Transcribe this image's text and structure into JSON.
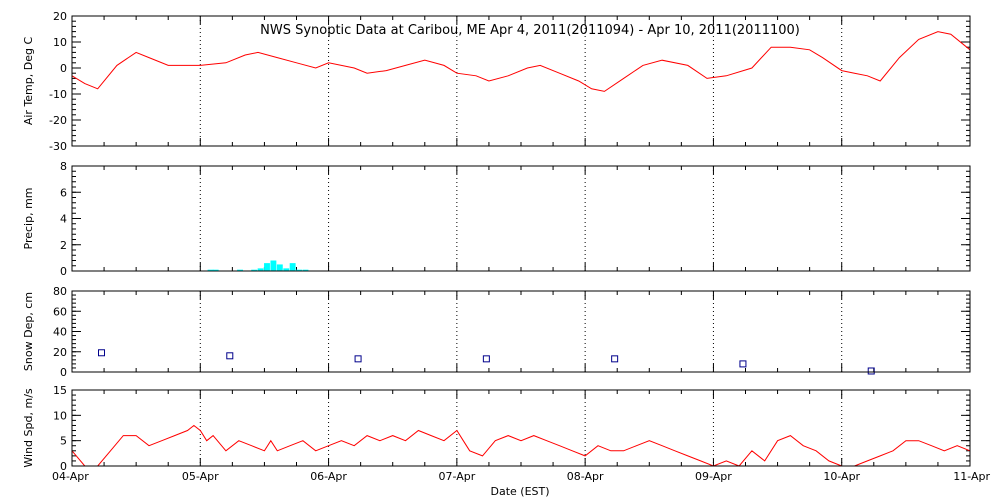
{
  "title": "NWS Synoptic Data at Caribou, ME   Apr  4, 2011(2011094) - Apr 10, 2011(2011100)",
  "xlabel": "Date (EST)",
  "x_ticks": [
    "04-Apr",
    "05-Apr",
    "06-Apr",
    "07-Apr",
    "08-Apr",
    "09-Apr",
    "10-Apr",
    "11-Apr"
  ],
  "colors": {
    "temp": "#ff0000",
    "precip": "#00ffff",
    "snow": "#00008b",
    "wind": "#ff0000"
  },
  "chart_data": [
    {
      "type": "line",
      "name": "air_temp",
      "ylabel": "Air Temp, Deg C",
      "ylim": [
        -30,
        20
      ],
      "yticks": [
        20,
        10,
        0,
        -10,
        -20,
        -30
      ],
      "xlim": [
        0,
        7
      ],
      "grid": "vertical dotted at day boundaries",
      "x_days": [
        0.0,
        0.1,
        0.2,
        0.35,
        0.5,
        0.6,
        0.75,
        0.85,
        1.0,
        1.2,
        1.35,
        1.45,
        1.6,
        1.75,
        1.9,
        2.0,
        2.2,
        2.3,
        2.45,
        2.6,
        2.75,
        2.9,
        3.0,
        3.15,
        3.25,
        3.4,
        3.55,
        3.65,
        3.8,
        3.95,
        4.05,
        4.15,
        4.3,
        4.45,
        4.6,
        4.8,
        4.95,
        5.1,
        5.3,
        5.45,
        5.6,
        5.75,
        5.85,
        6.0,
        6.1,
        6.2,
        6.3,
        6.45,
        6.6,
        6.75,
        6.85,
        7.0
      ],
      "y": [
        -3,
        -6,
        -8,
        1,
        6,
        4,
        1,
        1,
        1,
        2,
        5,
        6,
        4,
        2,
        0,
        2,
        0,
        -2,
        -1,
        1,
        3,
        1,
        -2,
        -3,
        -5,
        -3,
        0,
        1,
        -2,
        -5,
        -8,
        -9,
        -4,
        1,
        3,
        1,
        -4,
        -3,
        0,
        8,
        8,
        7,
        4,
        -1,
        -2,
        -3,
        -5,
        4,
        11,
        14,
        13,
        7
      ]
    },
    {
      "type": "bar",
      "name": "precip",
      "ylabel": "Precip, mm",
      "ylim": [
        0,
        8
      ],
      "yticks": [
        0,
        2,
        4,
        6,
        8
      ],
      "xlim": [
        0,
        7
      ],
      "x_days": [
        1.08,
        1.12,
        1.31,
        1.42,
        1.47,
        1.52,
        1.57,
        1.62,
        1.67,
        1.72,
        1.77,
        1.82
      ],
      "values": [
        0.1,
        0.1,
        0.1,
        0.1,
        0.2,
        0.6,
        0.8,
        0.5,
        0.2,
        0.6,
        0.1,
        0.1
      ]
    },
    {
      "type": "scatter",
      "name": "snow_depth",
      "ylabel": "Snow Dep, cm",
      "ylim": [
        0,
        80
      ],
      "yticks": [
        0,
        20,
        40,
        60,
        80
      ],
      "xlim": [
        0,
        7
      ],
      "x_days": [
        0.23,
        1.23,
        2.23,
        3.23,
        4.23,
        5.23,
        6.23
      ],
      "y": [
        19,
        16,
        13,
        13,
        13,
        8,
        1
      ]
    },
    {
      "type": "line",
      "name": "wind_speed",
      "ylabel": "Wind Spd, m/s",
      "ylim": [
        0,
        15
      ],
      "yticks": [
        0,
        5,
        10,
        15
      ],
      "xlim": [
        0,
        7
      ],
      "x_days": [
        0.0,
        0.1,
        0.2,
        0.3,
        0.4,
        0.5,
        0.6,
        0.7,
        0.8,
        0.9,
        0.95,
        1.0,
        1.05,
        1.1,
        1.2,
        1.3,
        1.4,
        1.5,
        1.55,
        1.6,
        1.7,
        1.8,
        1.9,
        2.0,
        2.1,
        2.2,
        2.3,
        2.4,
        2.5,
        2.6,
        2.7,
        2.8,
        2.9,
        3.0,
        3.05,
        3.1,
        3.2,
        3.3,
        3.4,
        3.5,
        3.6,
        3.7,
        3.8,
        3.9,
        4.0,
        4.1,
        4.2,
        4.3,
        4.4,
        4.5,
        4.6,
        4.7,
        4.8,
        4.9,
        5.0,
        5.1,
        5.2,
        5.3,
        5.4,
        5.5,
        5.6,
        5.7,
        5.8,
        5.9,
        6.0,
        6.1,
        6.2,
        6.3,
        6.4,
        6.5,
        6.6,
        6.7,
        6.8,
        6.9,
        7.0
      ],
      "y": [
        3,
        0,
        0,
        3,
        6,
        6,
        4,
        5,
        6,
        7,
        8,
        7,
        5,
        6,
        3,
        5,
        4,
        3,
        5,
        3,
        4,
        5,
        3,
        4,
        5,
        4,
        6,
        5,
        6,
        5,
        7,
        6,
        5,
        7,
        5,
        3,
        2,
        5,
        6,
        5,
        6,
        5,
        4,
        3,
        2,
        4,
        3,
        3,
        4,
        5,
        4,
        3,
        2,
        1,
        0,
        1,
        0,
        3,
        1,
        5,
        6,
        4,
        3,
        1,
        0,
        0,
        1,
        2,
        3,
        5,
        5,
        4,
        3,
        4,
        3
      ]
    }
  ]
}
